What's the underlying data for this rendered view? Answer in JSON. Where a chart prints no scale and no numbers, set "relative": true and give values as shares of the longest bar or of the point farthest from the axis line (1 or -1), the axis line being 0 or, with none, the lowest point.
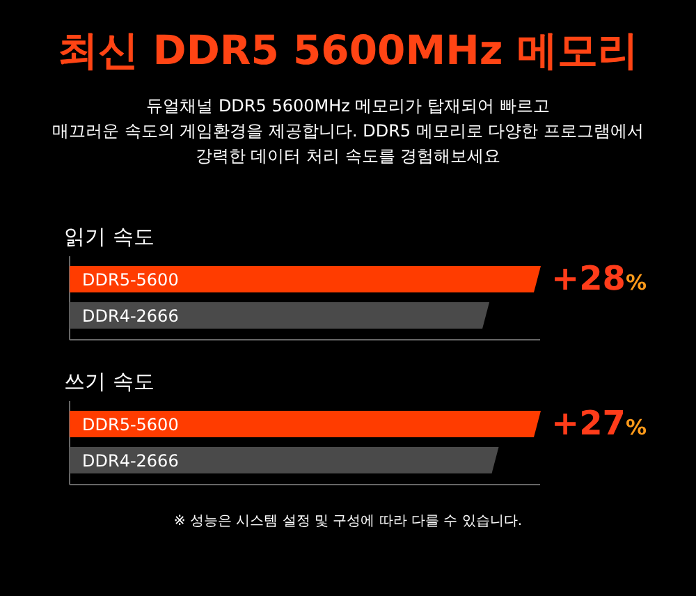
{
  "chart_data": [
    {
      "type": "other",
      "title": "최신 DDR5 5600MHz 메모리",
      "subtitle": "듀얼채널 DDR5 5600MHz 메모리가 탑재되어 빠르고\n매끄러운 속도의 게임환경을 제공합니다. DDR5 메모리로 다양한 프로그램에서\n강력한 데이터 처리 속도를 경험해보세요"
    },
    {
      "type": "bar",
      "orientation": "horizontal",
      "relative": true,
      "title": "읽기 속도",
      "categories": [
        "DDR5-5600",
        "DDR4-2666"
      ],
      "values": [
        1,
        0.89
      ],
      "colors": [
        "#ff3c00",
        "#4a4a4a"
      ],
      "annotations": [
        "+28%"
      ]
    },
    {
      "type": "bar",
      "orientation": "horizontal",
      "relative": true,
      "title": "쓰기 속도",
      "categories": [
        "DDR5-5600",
        "DDR4-2666"
      ],
      "values": [
        1,
        0.91
      ],
      "colors": [
        "#ff3c00",
        "#4a4a4a"
      ],
      "annotations": [
        "+27%",
        "※ 성능은 시스템 설정 및 구성에 따라 다를 수 있습니다."
      ]
    }
  ]
}
